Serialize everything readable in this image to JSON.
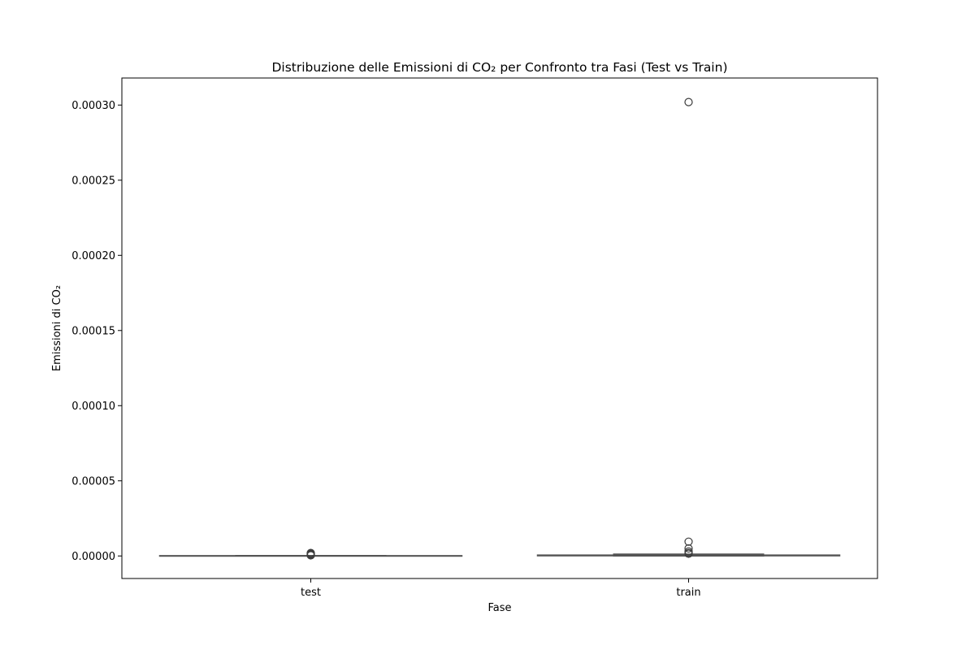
{
  "chart_data": {
    "type": "box",
    "title": "Distribuzione delle Emissioni di CO₂ per Confronto tra Fasi (Test vs Train)",
    "xlabel": "Fase",
    "ylabel": "Emissioni di CO₂",
    "categories": [
      "test",
      "train"
    ],
    "ylim": [
      -1.5e-05,
      0.000318
    ],
    "yticks": [
      0,
      5e-05,
      0.0001,
      0.00015,
      0.0002,
      0.00025,
      0.0003
    ],
    "ytick_labels": [
      "0.00000",
      "0.00005",
      "0.00010",
      "0.00015",
      "0.00020",
      "0.00025",
      "0.00030"
    ],
    "boxes": [
      {
        "category": "test",
        "whisker_low": 0.0,
        "q1": 0.0,
        "median": 0.0,
        "q3": 2e-07,
        "whisker_high": 3e-07,
        "outliers": [
          4e-07,
          8e-07,
          1.2e-06,
          1.6e-06,
          2e-06
        ]
      },
      {
        "category": "train",
        "whisker_low": 0.0,
        "q1": 1e-07,
        "median": 3e-07,
        "q3": 6e-07,
        "whisker_high": 1.2e-06,
        "outliers": [
          1.5e-06,
          2e-06,
          3e-06,
          5e-06,
          9.5e-06,
          0.000302
        ]
      }
    ],
    "grid": false,
    "legend": "none",
    "box_color": "#3a6fa8",
    "line_color": "#555555"
  }
}
